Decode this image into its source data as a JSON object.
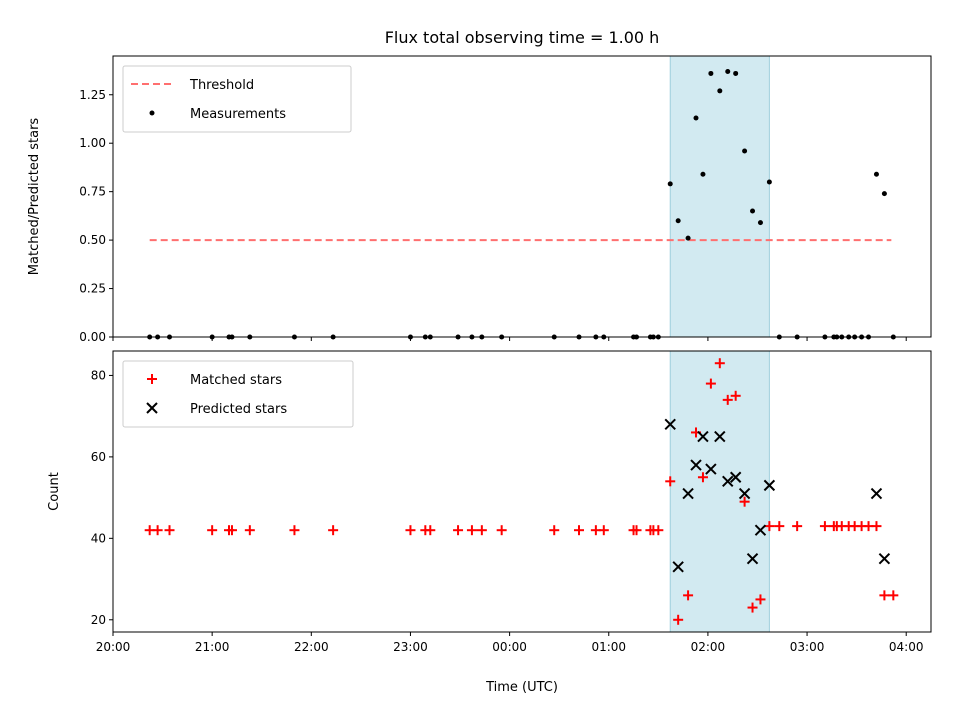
{
  "chart_data": [
    {
      "type": "scatter",
      "title": "Flux total observing time = 1.00 h",
      "xlabel": "",
      "ylabel": "Matched/Predicted stars",
      "ylim": [
        0,
        1.45
      ],
      "yticks": [
        "0.00",
        "0.25",
        "0.50",
        "0.75",
        "1.00",
        "1.25"
      ],
      "ytick_values": [
        0,
        0.25,
        0.5,
        0.75,
        1.0,
        1.25
      ],
      "xlim_hours": [
        20.0,
        28.25
      ],
      "grid": false,
      "legend_position": "top-left",
      "highlight_span_hours": [
        25.62,
        26.62
      ],
      "highlight_color": "#add8e6",
      "series": [
        {
          "name": "Threshold",
          "kind": "line-dashed",
          "color": "#ff6f6f",
          "x_hours": [
            20.37,
            27.85
          ],
          "y": [
            0.5,
            0.5
          ]
        },
        {
          "name": "Measurements",
          "kind": "dot",
          "color": "#000000",
          "x_hours": [
            20.37,
            20.45,
            20.57,
            21.0,
            21.17,
            21.2,
            21.38,
            21.83,
            22.22,
            23.0,
            23.15,
            23.2,
            23.48,
            23.62,
            23.72,
            23.92,
            24.45,
            24.7,
            24.87,
            24.95,
            25.25,
            25.28,
            25.42,
            25.45,
            25.5,
            25.62,
            25.7,
            25.8,
            25.88,
            25.95,
            26.03,
            26.12,
            26.2,
            26.28,
            26.37,
            26.45,
            26.53,
            26.62,
            26.72,
            26.9,
            27.18,
            27.27,
            27.3,
            27.35,
            27.42,
            27.48,
            27.55,
            27.62,
            27.7,
            27.78,
            27.87
          ],
          "y": [
            0,
            0,
            0,
            0,
            0,
            0,
            0,
            0,
            0,
            0,
            0,
            0,
            0,
            0,
            0,
            0,
            0,
            0,
            0,
            0,
            0,
            0,
            0,
            0,
            0,
            0.79,
            0.6,
            0.51,
            1.13,
            0.84,
            1.36,
            1.27,
            1.37,
            1.36,
            0.96,
            0.65,
            0.59,
            0.8,
            0,
            0,
            0,
            0,
            0,
            0,
            0,
            0,
            0,
            0,
            0.84,
            0.74,
            0
          ]
        }
      ]
    },
    {
      "type": "scatter",
      "title": "",
      "xlabel": "Time (UTC)",
      "ylabel": "Count",
      "ylim": [
        17,
        86
      ],
      "yticks": [
        "20",
        "40",
        "60",
        "80"
      ],
      "ytick_values": [
        20,
        40,
        60,
        80
      ],
      "xlim_hours": [
        20.0,
        28.25
      ],
      "xticks": [
        "20:00",
        "21:00",
        "22:00",
        "23:00",
        "00:00",
        "01:00",
        "02:00",
        "03:00",
        "04:00"
      ],
      "xtick_values_hours": [
        20,
        21,
        22,
        23,
        24,
        25,
        26,
        27,
        28
      ],
      "grid": false,
      "legend_position": "top-left",
      "highlight_span_hours": [
        25.62,
        26.62
      ],
      "highlight_color": "#add8e6",
      "series": [
        {
          "name": "Matched stars",
          "kind": "plus",
          "color": "#ff0000",
          "x_hours": [
            20.37,
            20.45,
            20.57,
            21.0,
            21.17,
            21.2,
            21.38,
            21.83,
            22.22,
            23.0,
            23.15,
            23.2,
            23.48,
            23.62,
            23.72,
            23.92,
            24.45,
            24.7,
            24.87,
            24.95,
            25.25,
            25.28,
            25.42,
            25.45,
            25.5,
            25.62,
            25.7,
            25.8,
            25.88,
            25.95,
            26.03,
            26.12,
            26.2,
            26.28,
            26.37,
            26.45,
            26.53,
            26.62,
            26.72,
            26.9,
            27.18,
            27.27,
            27.3,
            27.35,
            27.42,
            27.48,
            27.55,
            27.62,
            27.7,
            27.78,
            27.87
          ],
          "y": [
            42,
            42,
            42,
            42,
            42,
            42,
            42,
            42,
            42,
            42,
            42,
            42,
            42,
            42,
            42,
            42,
            42,
            42,
            42,
            42,
            42,
            42,
            42,
            42,
            42,
            54,
            20,
            26,
            66,
            55,
            78,
            83,
            74,
            75,
            49,
            23,
            25,
            43,
            43,
            43,
            43,
            43,
            43,
            43,
            43,
            43,
            43,
            43,
            43,
            26,
            26
          ]
        },
        {
          "name": "Predicted stars",
          "kind": "x",
          "color": "#000000",
          "x_hours": [
            25.62,
            25.7,
            25.8,
            25.88,
            25.95,
            26.03,
            26.12,
            26.2,
            26.28,
            26.37,
            26.45,
            26.53,
            26.62,
            27.7,
            27.78
          ],
          "y": [
            68,
            33,
            51,
            58,
            65,
            57,
            65,
            54,
            55,
            51,
            35,
            42,
            53,
            51,
            35
          ]
        }
      ]
    }
  ]
}
